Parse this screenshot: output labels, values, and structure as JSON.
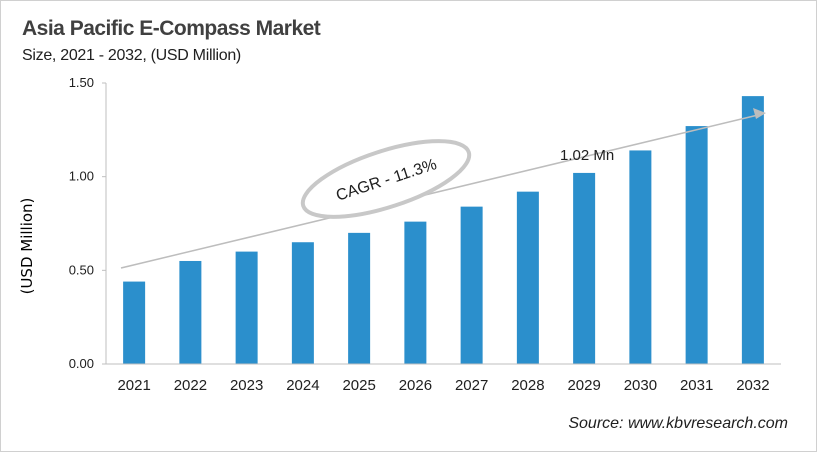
{
  "title": "Asia Pacific E-Compass Market",
  "subtitle": "Size, 2021 - 2032, (USD Million)",
  "source": "Source: www.kbvresearch.com",
  "chart_data": {
    "type": "bar",
    "title": "Asia Pacific E-Compass Market",
    "subtitle": "Size, 2021 - 2032, (USD Million)",
    "xlabel": "",
    "ylabel": "(USD Million)",
    "categories": [
      "2021",
      "2022",
      "2023",
      "2024",
      "2025",
      "2026",
      "2027",
      "2028",
      "2029",
      "2030",
      "2031",
      "2032"
    ],
    "values": [
      0.44,
      0.55,
      0.6,
      0.65,
      0.7,
      0.76,
      0.84,
      0.92,
      1.02,
      1.14,
      1.27,
      1.43
    ],
    "ylim": [
      0,
      1.5
    ],
    "yticks": [
      "0.00",
      "0.50",
      "1.00",
      "1.50"
    ],
    "grid": false,
    "bar_color": "#2b8fcc",
    "annotations": {
      "cagr": "CAGR - 11.3%",
      "value_label": "1.02 Mn",
      "value_label_category": "2029"
    }
  }
}
